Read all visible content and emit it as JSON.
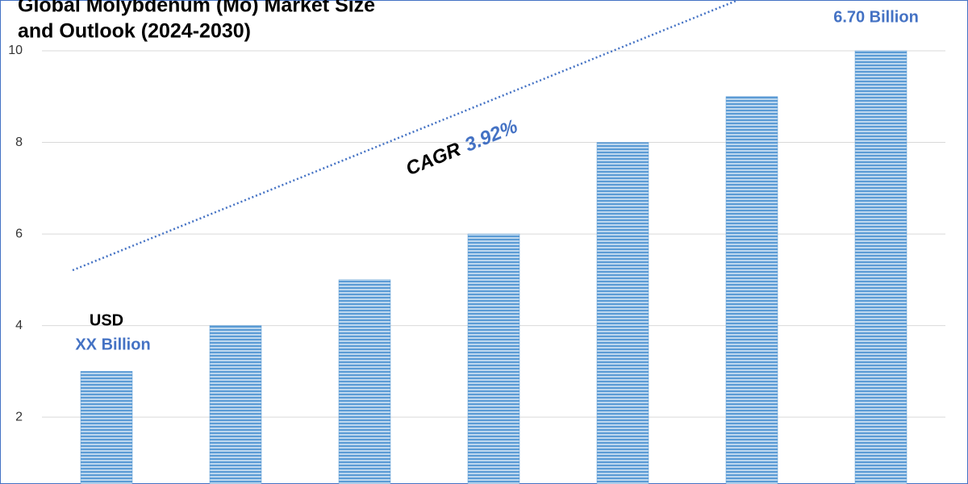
{
  "chart_data": {
    "type": "bar",
    "title": [
      "Global Molybdenum (Mo) Market Size",
      "and Outlook (2024-2030)"
    ],
    "categories": [
      null,
      null,
      null,
      null,
      null,
      null,
      null
    ],
    "values": [
      3,
      4,
      5,
      6,
      8,
      9,
      10
    ],
    "color": "#5b9bd5",
    "ylim": [
      0.54,
      11.11
    ],
    "yticks": [
      2,
      4,
      6,
      8,
      10
    ],
    "grid": true,
    "annotations": [
      "USD",
      "XX Billion",
      "6.70 Billion",
      "CAGR",
      "3.92%"
    ]
  }
}
